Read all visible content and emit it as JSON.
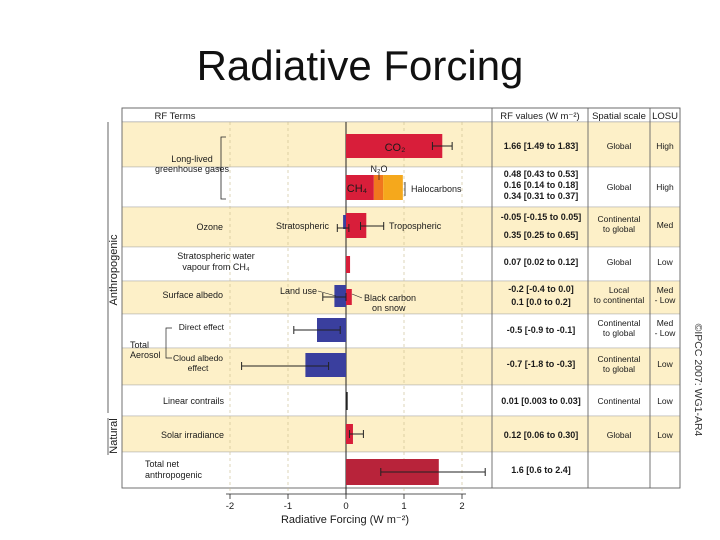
{
  "title": "Radiative Forcing",
  "copyright": "©IPCC 2007: WG1-AR4",
  "header": {
    "terms": "RF Terms",
    "values": "RF values (W m⁻²)",
    "scale": "Spatial scale",
    "losu": "LOSU"
  },
  "side_labels": {
    "anthropogenic": "Anthropogenic",
    "natural": "Natural"
  },
  "row_labels": {
    "ghg": [
      "Long-lived",
      "greenhouse gases"
    ],
    "ozone": "Ozone",
    "strat_water": [
      "Stratospheric water",
      "vapour from CH₄"
    ],
    "albedo": "Surface albedo",
    "aerosol_total": [
      "Total",
      "Aerosol"
    ],
    "aerosol_direct": "Direct effect",
    "aerosol_cloud": [
      "Cloud albedo",
      "effect"
    ],
    "contrails": "Linear contrails",
    "solar": "Solar irradiance",
    "net": [
      "Total net",
      "anthropogenic"
    ]
  },
  "chart_data": {
    "type": "bar",
    "orientation": "horizontal",
    "title": "Radiative Forcing",
    "xlabel": "Radiative Forcing  (W m⁻²)",
    "xlim": [
      -2,
      2
    ],
    "xticks": [
      -2,
      -1,
      0,
      1,
      2
    ],
    "bars": [
      {
        "term": "CO2",
        "label": "CO₂",
        "group": "Long-lived greenhouse gases",
        "value": 1.66,
        "range": [
          1.49,
          1.83
        ],
        "text": "1.66 [1.49 to 1.83]",
        "scale": "Global",
        "losu": "High",
        "color": "#d81e3a"
      },
      {
        "term": "CH4",
        "label": "CH₄",
        "group": "Long-lived greenhouse gases",
        "value": 0.48,
        "range": [
          0.43,
          0.53
        ],
        "text": "0.48 [0.43 to 0.53]",
        "scale": "Global",
        "losu": "High",
        "color": "#d81e3a"
      },
      {
        "term": "N2O",
        "label": "N₂O",
        "group": "Long-lived greenhouse gases",
        "value": 0.16,
        "range": [
          0.14,
          0.18
        ],
        "text": "0.16 [0.14 to 0.18]",
        "scale": "Global",
        "losu": "High",
        "color": "#f0771e"
      },
      {
        "term": "Halocarbons",
        "label": "Halocarbons",
        "group": "Long-lived greenhouse gases",
        "value": 0.34,
        "range": [
          0.31,
          0.37
        ],
        "text": "0.34 [0.31 to 0.37]",
        "scale": "Global",
        "losu": "High",
        "color": "#f5a81c"
      },
      {
        "term": "Stratospheric ozone",
        "label": "Stratospheric",
        "group": "Ozone",
        "value": -0.05,
        "range": [
          -0.15,
          0.05
        ],
        "text": "-0.05 [-0.15 to 0.05]",
        "scale": "Continental to global",
        "losu": "Med",
        "color": "#3a3f9e"
      },
      {
        "term": "Tropospheric ozone",
        "label": "Tropospheric",
        "group": "Ozone",
        "value": 0.35,
        "range": [
          0.25,
          0.65
        ],
        "text": "0.35 [0.25 to 0.65]",
        "scale": "Continental to global",
        "losu": "Med",
        "color": "#d81e3a"
      },
      {
        "term": "Stratospheric water vapour from CH4",
        "label": "",
        "group": "Stratospheric water vapour from CH₄",
        "value": 0.07,
        "range": [
          0.02,
          0.12
        ],
        "text": "0.07 [0.02 to 0.12]",
        "scale": "Global",
        "losu": "Low",
        "color": "#d81e3a"
      },
      {
        "term": "Land use",
        "label": "Land use",
        "group": "Surface albedo",
        "value": -0.2,
        "range": [
          -0.4,
          0.0
        ],
        "text": "-0.2 [-0.4 to 0.0]",
        "scale": "Local to continental",
        "losu": "Med - Low",
        "color": "#3a3f9e"
      },
      {
        "term": "Black carbon on snow",
        "label": "Black carbon on snow",
        "group": "Surface albedo",
        "value": 0.1,
        "range": [
          0.0,
          0.2
        ],
        "text": "0.1 [0.0 to 0.2]",
        "scale": "Local to continental",
        "losu": "Med - Low",
        "color": "#d81e3a"
      },
      {
        "term": "Aerosol direct effect",
        "label": "",
        "group": "Total Aerosol",
        "value": -0.5,
        "range": [
          -0.9,
          -0.1
        ],
        "text": "-0.5 [-0.9 to -0.1]",
        "scale": "Continental to global",
        "losu": "Med - Low",
        "color": "#3a3f9e"
      },
      {
        "term": "Cloud albedo effect",
        "label": "",
        "group": "Total Aerosol",
        "value": -0.7,
        "range": [
          -1.8,
          -0.3
        ],
        "text": "-0.7 [-1.8 to -0.3]",
        "scale": "Continental to global",
        "losu": "Low",
        "color": "#3a3f9e"
      },
      {
        "term": "Linear contrails",
        "label": "",
        "group": "Linear contrails",
        "value": 0.01,
        "range": [
          0.003,
          0.03
        ],
        "text": "0.01 [0.003 to 0.03]",
        "scale": "Continental",
        "losu": "Low",
        "color": "#d81e3a"
      },
      {
        "term": "Solar irradiance",
        "label": "",
        "group": "Solar irradiance",
        "value": 0.12,
        "range": [
          0.06,
          0.3
        ],
        "text": "0.12 [0.06 to 0.30]",
        "scale": "Global",
        "losu": "Low",
        "color": "#d81e3a"
      },
      {
        "term": "Total net anthropogenic",
        "label": "",
        "group": "Total net anthropogenic",
        "value": 1.6,
        "range": [
          0.6,
          2.4
        ],
        "text": "1.6 [0.6 to 2.4]",
        "scale": "",
        "losu": "",
        "color": "#b8233a"
      }
    ]
  }
}
